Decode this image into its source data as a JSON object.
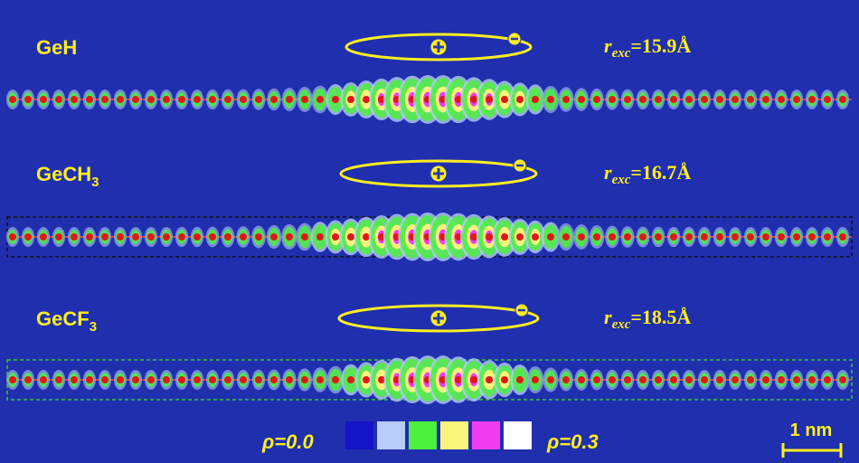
{
  "panels": [
    {
      "label": "GeH",
      "radius": {
        "symbol": "r",
        "subscript": "exc",
        "text": "=15.9Å"
      }
    },
    {
      "label": "GeCH",
      "label_subscript": "3",
      "radius": {
        "symbol": "r",
        "subscript": "exc",
        "text": "=16.7Å"
      }
    },
    {
      "label": "GeCF",
      "label_subscript": "3",
      "radius": {
        "symbol": "r",
        "subscript": "exc",
        "text": "=18.5Å"
      }
    }
  ],
  "legend": {
    "min_label": "ρ=0.0",
    "max_label": "ρ=0.3",
    "colors": [
      "#1414c8",
      "#b8ccf8",
      "#4cf03c",
      "#f8f47c",
      "#f03cf0",
      "#ffffff"
    ]
  },
  "scale_bar": "1 nm"
}
